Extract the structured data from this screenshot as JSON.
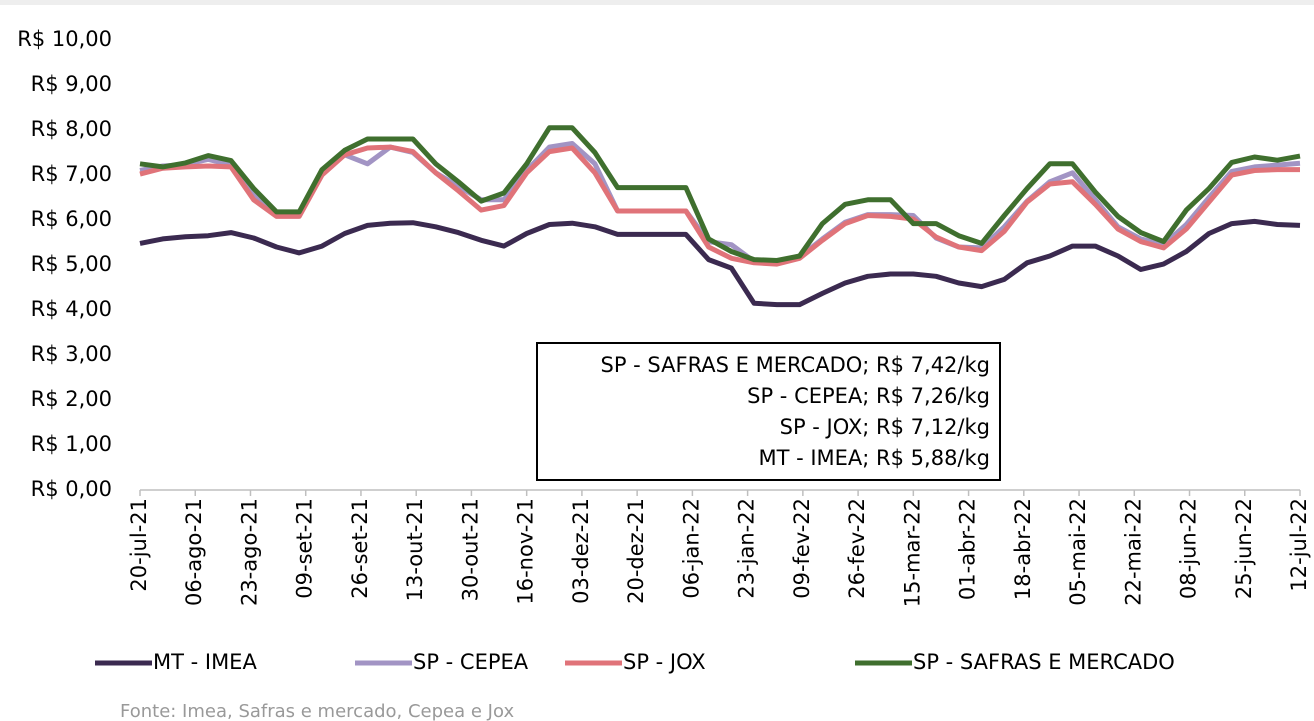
{
  "chart_data": {
    "type": "line",
    "x": [
      "2021-07-20",
      "2021-07-27",
      "2021-08-03",
      "2021-08-10",
      "2021-08-17",
      "2021-08-24",
      "2021-08-31",
      "2021-09-07",
      "2021-09-14",
      "2021-09-21",
      "2021-09-28",
      "2021-10-05",
      "2021-10-12",
      "2021-10-19",
      "2021-10-26",
      "2021-11-02",
      "2021-11-09",
      "2021-11-16",
      "2021-11-23",
      "2021-11-30",
      "2021-12-07",
      "2021-12-14",
      "2021-12-21",
      "2021-12-28",
      "2022-01-04",
      "2022-01-11",
      "2022-01-18",
      "2022-01-25",
      "2022-02-01",
      "2022-02-08",
      "2022-02-15",
      "2022-02-22",
      "2022-03-01",
      "2022-03-08",
      "2022-03-15",
      "2022-03-22",
      "2022-03-29",
      "2022-04-05",
      "2022-04-12",
      "2022-04-19",
      "2022-04-26",
      "2022-05-03",
      "2022-05-10",
      "2022-05-17",
      "2022-05-24",
      "2022-05-31",
      "2022-06-07",
      "2022-06-14",
      "2022-06-21",
      "2022-06-28",
      "2022-07-05",
      "2022-07-12"
    ],
    "series": [
      {
        "name": "MT - IMEA",
        "color": "#3b2a50",
        "values": [
          5.48,
          5.58,
          5.63,
          5.65,
          5.72,
          5.6,
          5.4,
          5.27,
          5.42,
          5.7,
          5.88,
          5.93,
          5.94,
          5.85,
          5.72,
          5.55,
          5.42,
          5.7,
          5.9,
          5.93,
          5.85,
          5.68,
          5.68,
          5.68,
          5.68,
          5.12,
          4.93,
          4.15,
          4.12,
          4.12,
          4.37,
          4.6,
          4.75,
          4.8,
          4.8,
          4.75,
          4.6,
          4.52,
          4.68,
          5.05,
          5.2,
          5.42,
          5.42,
          5.2,
          4.9,
          5.02,
          5.3,
          5.7,
          5.92,
          5.97,
          5.9,
          5.88
        ]
      },
      {
        "name": "SP - CEPEA",
        "color": "#a294c4",
        "values": [
          7.1,
          7.2,
          7.23,
          7.35,
          7.22,
          6.55,
          6.1,
          6.1,
          7.05,
          7.45,
          7.25,
          7.62,
          7.5,
          7.05,
          6.75,
          6.45,
          6.45,
          7.1,
          7.62,
          7.7,
          7.25,
          6.2,
          6.2,
          6.2,
          6.2,
          5.52,
          5.45,
          5.08,
          5.05,
          5.18,
          5.58,
          5.95,
          6.12,
          6.12,
          6.1,
          5.6,
          5.4,
          5.38,
          5.85,
          6.42,
          6.85,
          7.05,
          6.45,
          5.85,
          5.58,
          5.45,
          5.9,
          6.5,
          7.08,
          7.18,
          7.22,
          7.26
        ]
      },
      {
        "name": "SP - JOX",
        "color": "#e07379",
        "values": [
          7.02,
          7.15,
          7.18,
          7.2,
          7.18,
          6.45,
          6.08,
          6.08,
          7.0,
          7.45,
          7.6,
          7.62,
          7.52,
          7.05,
          6.65,
          6.22,
          6.32,
          7.05,
          7.52,
          7.6,
          7.05,
          6.2,
          6.2,
          6.2,
          6.2,
          5.4,
          5.15,
          5.05,
          5.02,
          5.15,
          5.55,
          5.92,
          6.1,
          6.08,
          6.02,
          5.62,
          5.4,
          5.32,
          5.75,
          6.4,
          6.8,
          6.85,
          6.35,
          5.8,
          5.52,
          5.38,
          5.8,
          6.4,
          7.0,
          7.1,
          7.12,
          7.12
        ]
      },
      {
        "name": "SP - SAFRAS E MERCADO",
        "color": "#3f6f2e",
        "values": [
          7.25,
          7.18,
          7.27,
          7.43,
          7.32,
          6.7,
          6.18,
          6.18,
          7.12,
          7.55,
          7.8,
          7.8,
          7.8,
          7.25,
          6.85,
          6.42,
          6.6,
          7.25,
          8.05,
          8.05,
          7.5,
          6.72,
          6.72,
          6.72,
          6.72,
          5.58,
          5.3,
          5.12,
          5.1,
          5.2,
          5.92,
          6.35,
          6.45,
          6.45,
          5.92,
          5.92,
          5.65,
          5.48,
          6.1,
          6.7,
          7.25,
          7.25,
          6.62,
          6.08,
          5.72,
          5.52,
          6.22,
          6.7,
          7.28,
          7.4,
          7.33,
          7.42
        ]
      }
    ],
    "xlim": [
      "2021-07-20",
      "2022-07-12"
    ],
    "xticks": [
      {
        "value": "2021-07-20",
        "label": "20-jul-21"
      },
      {
        "value": "2021-08-06",
        "label": "06-ago-21"
      },
      {
        "value": "2021-08-23",
        "label": "23-ago-21"
      },
      {
        "value": "2021-09-09",
        "label": "09-set-21"
      },
      {
        "value": "2021-09-26",
        "label": "26-set-21"
      },
      {
        "value": "2021-10-13",
        "label": "13-out-21"
      },
      {
        "value": "2021-10-30",
        "label": "30-out-21"
      },
      {
        "value": "2021-11-16",
        "label": "16-nov-21"
      },
      {
        "value": "2021-12-03",
        "label": "03-dez-21"
      },
      {
        "value": "2021-12-20",
        "label": "20-dez-21"
      },
      {
        "value": "2022-01-06",
        "label": "06-jan-22"
      },
      {
        "value": "2022-01-23",
        "label": "23-jan-22"
      },
      {
        "value": "2022-02-09",
        "label": "09-fev-22"
      },
      {
        "value": "2022-02-26",
        "label": "26-fev-22"
      },
      {
        "value": "2022-03-15",
        "label": "15-mar-22"
      },
      {
        "value": "2022-04-01",
        "label": "01-abr-22"
      },
      {
        "value": "2022-04-18",
        "label": "18-abr-22"
      },
      {
        "value": "2022-05-05",
        "label": "05-mai-22"
      },
      {
        "value": "2022-05-22",
        "label": "22-mai-22"
      },
      {
        "value": "2022-06-08",
        "label": "08-jun-22"
      },
      {
        "value": "2022-06-25",
        "label": "25-jun-22"
      },
      {
        "value": "2022-07-12",
        "label": "12-jul-22"
      }
    ],
    "ylim": [
      0,
      10
    ],
    "yticks": [
      {
        "value": 0,
        "label": "R$ 0,00"
      },
      {
        "value": 1,
        "label": "R$ 1,00"
      },
      {
        "value": 2,
        "label": "R$ 2,00"
      },
      {
        "value": 3,
        "label": "R$ 3,00"
      },
      {
        "value": 4,
        "label": "R$ 4,00"
      },
      {
        "value": 5,
        "label": "R$ 5,00"
      },
      {
        "value": 6,
        "label": "R$ 6,00"
      },
      {
        "value": 7,
        "label": "R$ 7,00"
      },
      {
        "value": 8,
        "label": "R$ 8,00"
      },
      {
        "value": 9,
        "label": "R$ 9,00"
      },
      {
        "value": 10,
        "label": "R$ 10,00"
      }
    ],
    "grid": false,
    "legend": "bottom",
    "annotation": [
      "SP - SAFRAS E MERCADO; R$ 7,42/kg",
      "SP - CEPEA; R$ 7,26/kg",
      "SP - JOX; R$ 7,12/kg",
      "MT - IMEA; R$ 5,88/kg"
    ],
    "source": "Fonte: Imea, Safras e mercado, Cepea e Jox"
  }
}
